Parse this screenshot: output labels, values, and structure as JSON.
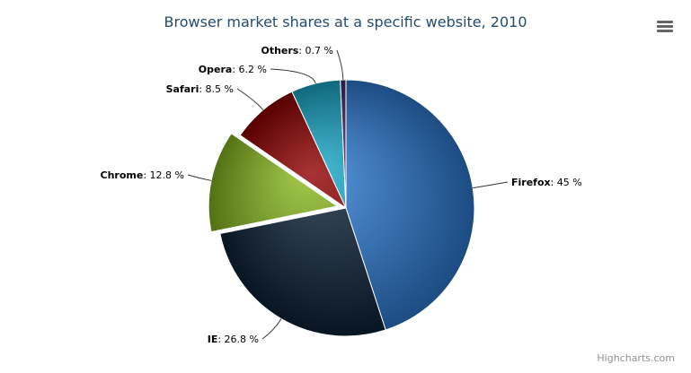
{
  "chart_data": {
    "type": "pie",
    "title": "Browser market shares at a specific website, 2010",
    "unit_suffix": " %",
    "slices": [
      {
        "name": "Firefox",
        "value": 45,
        "color": "#2f7ed8",
        "sliced": false
      },
      {
        "name": "IE",
        "value": 26.8,
        "color": "#0d233a",
        "sliced": false
      },
      {
        "name": "Chrome",
        "value": 12.8,
        "color": "#8bbc21",
        "sliced": true
      },
      {
        "name": "Safari",
        "value": 8.5,
        "color": "#910000",
        "sliced": false
      },
      {
        "name": "Opera",
        "value": 6.2,
        "color": "#1aadce",
        "sliced": false
      },
      {
        "name": "Others",
        "value": 0.7,
        "color": "#492970",
        "sliced": false
      }
    ]
  },
  "credits": "Highcharts.com",
  "menu_icon": "hamburger-menu-icon"
}
